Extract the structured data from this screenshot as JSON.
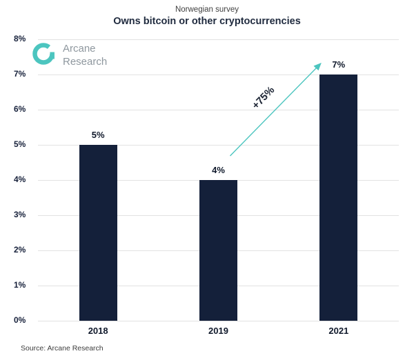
{
  "header": {
    "subtitle": "Norwegian survey",
    "title": "Owns bitcoin or other cryptocurrencies"
  },
  "logo": {
    "line1": "Arcane",
    "line2": "Research"
  },
  "source": "Source: Arcane Research",
  "colors": {
    "bar": "#14203a",
    "accent": "#4cc5bf",
    "grid": "#e2e2e2",
    "axis_text": "#16203a",
    "value_text": "#10192b"
  },
  "chart_data": {
    "type": "bar",
    "title": "Owns bitcoin or other cryptocurrencies",
    "subtitle": "Norwegian survey",
    "categories": [
      "2018",
      "2019",
      "2021"
    ],
    "values": [
      5,
      4,
      7
    ],
    "value_labels": [
      "5%",
      "4%",
      "7%"
    ],
    "ylim": [
      0,
      8
    ],
    "ytick_step": 1,
    "ytick_labels": [
      "0%",
      "1%",
      "2%",
      "3%",
      "4%",
      "5%",
      "6%",
      "7%",
      "8%"
    ],
    "grid": "horizontal",
    "legend": "none",
    "annotation": {
      "text": "+75%",
      "from_category": "2019",
      "to_category": "2021"
    }
  }
}
